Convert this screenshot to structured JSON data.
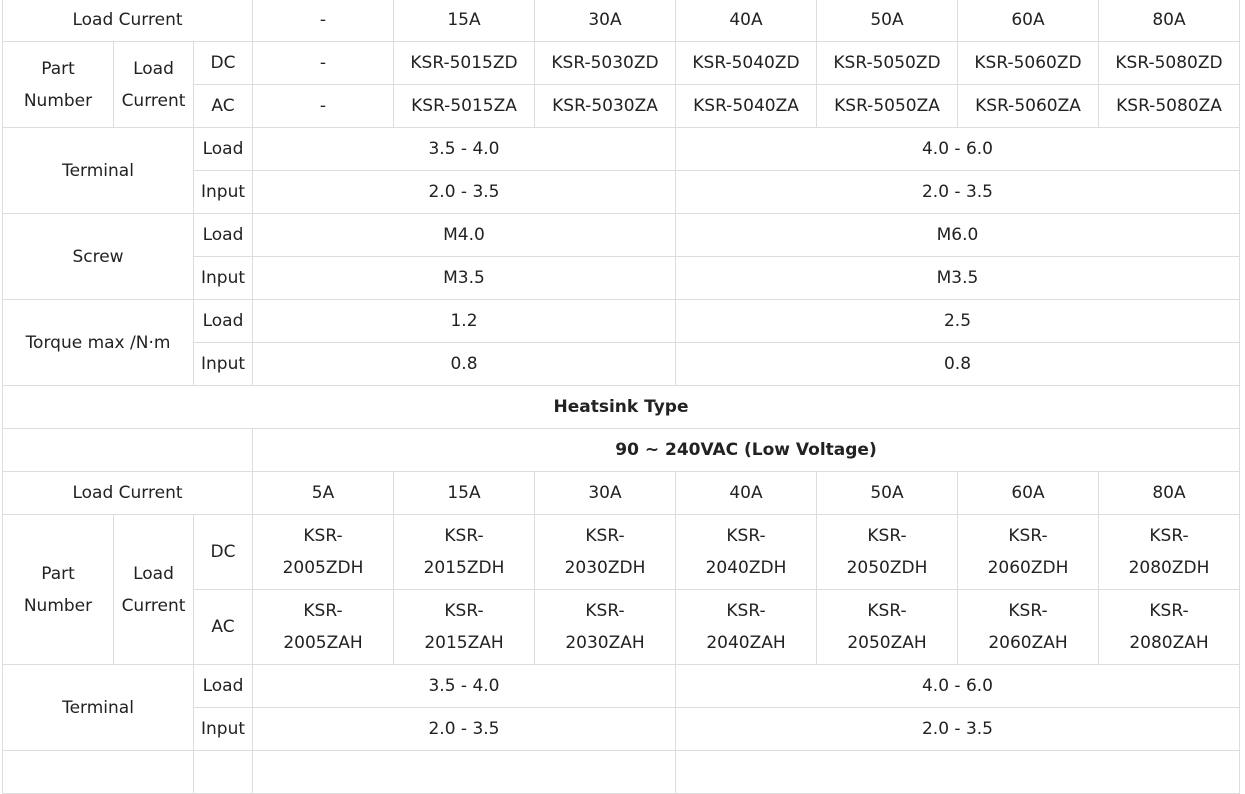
{
  "labels": {
    "load_current": "Load Current",
    "part_number_1": "Part",
    "part_number_2": "Number",
    "load_1": "Load",
    "current_2": "Current",
    "dc": "DC",
    "ac": "AC",
    "terminal": "Terminal",
    "screw": "Screw",
    "torque": "Torque max /N·m",
    "load": "Load",
    "input": "Input"
  },
  "top_table": {
    "currents": [
      "-",
      "15A",
      "30A",
      "40A",
      "50A",
      "60A",
      "80A"
    ],
    "dc_parts": [
      "-",
      "KSR-5015ZD",
      "KSR-5030ZD",
      "KSR-5040ZD",
      "KSR-5050ZD",
      "KSR-5060ZD",
      "KSR-5080ZD"
    ],
    "ac_parts": [
      "-",
      "KSR-5015ZA",
      "KSR-5030ZA",
      "KSR-5040ZA",
      "KSR-5050ZA",
      "KSR-5060ZA",
      "KSR-5080ZA"
    ],
    "terminal_load": [
      "3.5 - 4.0",
      "4.0 - 6.0"
    ],
    "terminal_input": [
      "2.0 - 3.5",
      "2.0 - 3.5"
    ],
    "screw_load": [
      "M4.0",
      "M6.0"
    ],
    "screw_input": [
      "M3.5",
      "M3.5"
    ],
    "torque_load": [
      "1.2",
      "2.5"
    ],
    "torque_input": [
      "0.8",
      "0.8"
    ]
  },
  "heatsink": {
    "section_title": "Heatsink Type",
    "voltage_title": "90 ~ 240VAC (Low Voltage)",
    "currents": [
      "5A",
      "15A",
      "30A",
      "40A",
      "50A",
      "60A",
      "80A"
    ],
    "dc_parts": [
      {
        "a": "KSR-",
        "b": "2005ZDH"
      },
      {
        "a": "KSR-",
        "b": "2015ZDH"
      },
      {
        "a": "KSR-",
        "b": "2030ZDH"
      },
      {
        "a": "KSR-",
        "b": "2040ZDH"
      },
      {
        "a": "KSR-",
        "b": "2050ZDH"
      },
      {
        "a": "KSR-",
        "b": "2060ZDH"
      },
      {
        "a": "KSR-",
        "b": "2080ZDH"
      }
    ],
    "ac_parts": [
      {
        "a": "KSR-",
        "b": "2005ZAH"
      },
      {
        "a": "KSR-",
        "b": "2015ZAH"
      },
      {
        "a": "KSR-",
        "b": "2030ZAH"
      },
      {
        "a": "KSR-",
        "b": "2040ZAH"
      },
      {
        "a": "KSR-",
        "b": "2050ZAH"
      },
      {
        "a": "KSR-",
        "b": "2060ZAH"
      },
      {
        "a": "KSR-",
        "b": "2080ZAH"
      }
    ],
    "terminal_load": [
      "3.5 - 4.0",
      "4.0 - 6.0"
    ],
    "terminal_input": [
      "2.0 - 3.5",
      "2.0 - 3.5"
    ]
  }
}
